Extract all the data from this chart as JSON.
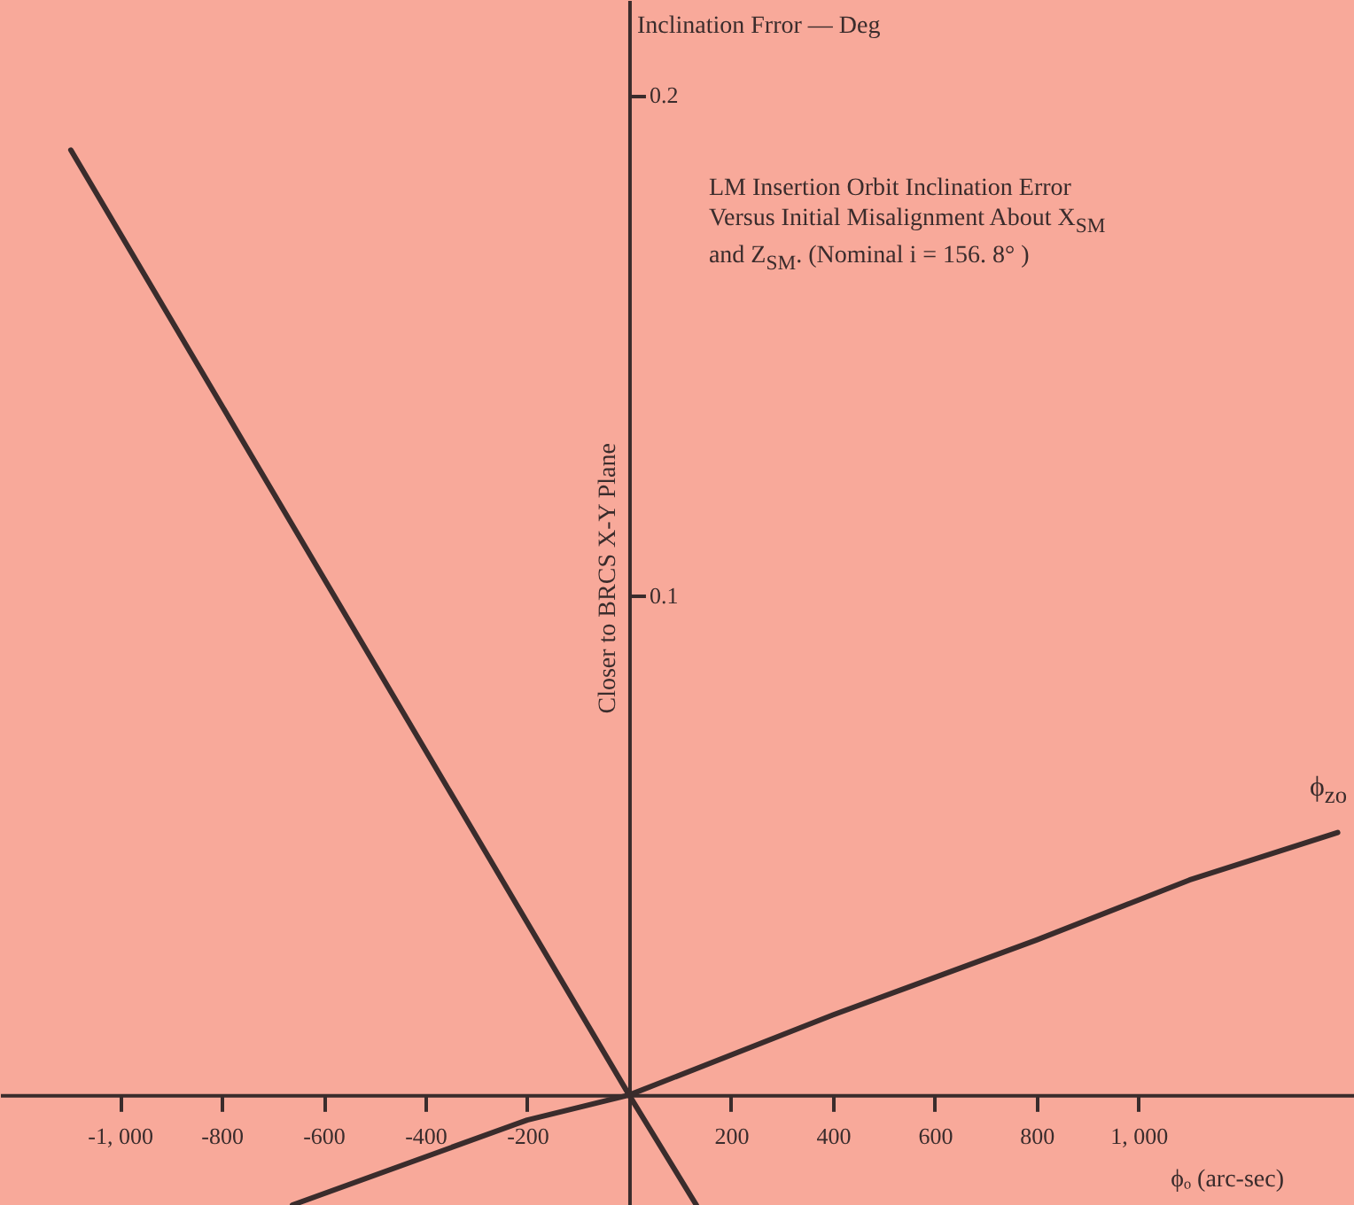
{
  "chart_data": {
    "type": "line",
    "xlabel": "ϕₒ (arc-sec)",
    "ylabel": "Inclination Frror — Deg",
    "annotations": [
      "LM Insertion Orbit Inclination Error Versus Initial Misalignment About X$_{SM}$ and Z$_{SM}$. (Nominal i = 156. 8° )",
      "Closer to BRCS X-Y Plane"
    ],
    "series": [
      {
        "color": "#3a2c2c",
        "x": [
          -1096,
          0,
          132
        ],
        "values": [
          0.189,
          0,
          -0.022
        ]
      },
      {
        "name": "ϕ$_{zo}$",
        "color": "#3a2c2c",
        "x": [
          -661,
          -200,
          0,
          400,
          800,
          1100,
          1391
        ],
        "values": [
          -0.022,
          -0.005,
          0,
          0.016,
          0.031,
          0.043,
          0.0525
        ]
      }
    ],
    "xlim": [
      -1235,
      1423
    ],
    "ylim": [
      -0.022,
      0.219
    ],
    "xticks": [
      {
        "value": -1000,
        "label": "-1, 000"
      },
      -800,
      -600,
      -400,
      -200,
      200,
      400,
      600,
      800,
      {
        "value": 1000,
        "label": "1, 000"
      }
    ],
    "yticks": [
      0.1,
      0.2
    ],
    "line_style": "solid"
  }
}
